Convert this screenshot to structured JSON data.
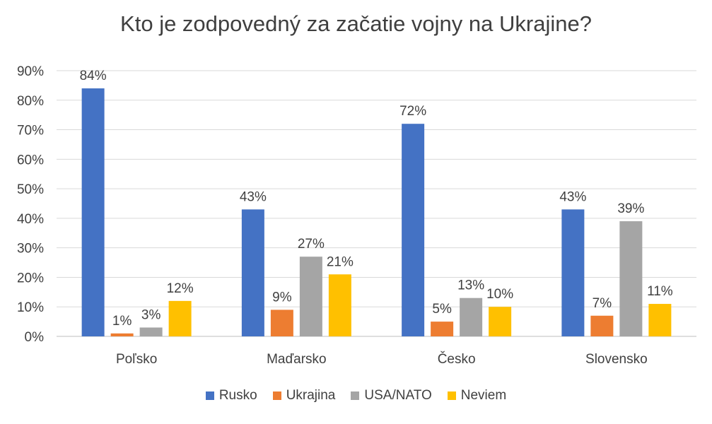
{
  "chart_data": {
    "type": "bar",
    "title": "Kto je zodpovedný za začatie vojny na Ukrajine?",
    "categories": [
      "Poľsko",
      "Maďarsko",
      "Česko",
      "Slovensko"
    ],
    "series": [
      {
        "name": "Rusko",
        "color": "#4472C4",
        "values": [
          84,
          43,
          72,
          43
        ],
        "labels": [
          "84%",
          "43%",
          "72%",
          "43%"
        ]
      },
      {
        "name": "Ukrajina",
        "color": "#ED7D31",
        "values": [
          1,
          9,
          5,
          7
        ],
        "labels": [
          "1%",
          "9%",
          "5%",
          "7%"
        ]
      },
      {
        "name": "USA/NATO",
        "color": "#A5A5A5",
        "values": [
          3,
          27,
          13,
          39
        ],
        "labels": [
          "3%",
          "27%",
          "13%",
          "39%"
        ]
      },
      {
        "name": "Neviem",
        "color": "#FFC000",
        "values": [
          12,
          21,
          10,
          11
        ],
        "labels": [
          "12%",
          "21%",
          "10%",
          "11%"
        ]
      }
    ],
    "ylim": [
      0,
      90
    ],
    "yticks": [
      {
        "value": 0,
        "label": "0%"
      },
      {
        "value": 10,
        "label": "10%"
      },
      {
        "value": 20,
        "label": "20%"
      },
      {
        "value": 30,
        "label": "30%"
      },
      {
        "value": 40,
        "label": "40%"
      },
      {
        "value": 50,
        "label": "50%"
      },
      {
        "value": 60,
        "label": "60%"
      },
      {
        "value": 70,
        "label": "70%"
      },
      {
        "value": 80,
        "label": "80%"
      },
      {
        "value": 90,
        "label": "90%"
      }
    ],
    "xlabel": "",
    "ylabel": "",
    "grid": true,
    "legend_position": "bottom"
  }
}
